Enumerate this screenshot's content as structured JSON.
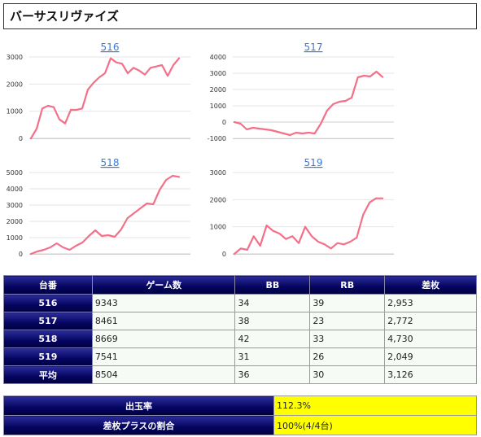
{
  "page": {
    "title": "バーサスリヴァイズ"
  },
  "chart_data": [
    {
      "type": "line",
      "title": "516",
      "ylim": [
        0,
        3000
      ],
      "yticks": [
        0,
        1000,
        2000,
        3000
      ],
      "ytick_labels": [
        "0",
        "1000",
        "2000",
        "3000"
      ],
      "series": [
        {
          "values": [
            0,
            350,
            1100,
            1200,
            1150,
            700,
            550,
            1050,
            1050,
            1100,
            1800,
            2050,
            2250,
            2400,
            2950,
            2800,
            2750,
            2400,
            2600,
            2500,
            2350,
            2600,
            2650,
            2700,
            2300,
            2700,
            2953
          ]
        }
      ],
      "color": "#f3708a",
      "grid": true
    },
    {
      "type": "line",
      "title": "517",
      "ylim": [
        -1000,
        4000
      ],
      "yticks": [
        -1000,
        0,
        1000,
        2000,
        3000,
        4000
      ],
      "ytick_labels": [
        "-1000",
        "0",
        "1000",
        "2000",
        "3000",
        "4000"
      ],
      "series": [
        {
          "values": [
            0,
            -100,
            -450,
            -350,
            -400,
            -450,
            -500,
            -600,
            -700,
            -800,
            -650,
            -700,
            -650,
            -700,
            -100,
            700,
            1100,
            1250,
            1300,
            1500,
            2750,
            2850,
            2800,
            3100,
            2772
          ]
        }
      ],
      "color": "#f3708a",
      "grid": true
    },
    {
      "type": "line",
      "title": "518",
      "ylim": [
        0,
        5000
      ],
      "yticks": [
        0,
        1000,
        2000,
        3000,
        4000,
        5000
      ],
      "ytick_labels": [
        "0",
        "1000",
        "2000",
        "3000",
        "4000",
        "5000"
      ],
      "series": [
        {
          "values": [
            0,
            150,
            250,
            400,
            650,
            400,
            250,
            500,
            700,
            1100,
            1450,
            1100,
            1150,
            1050,
            1500,
            2200,
            2500,
            2800,
            3100,
            3050,
            3950,
            4550,
            4800,
            4730
          ]
        }
      ],
      "color": "#f3708a",
      "grid": true
    },
    {
      "type": "line",
      "title": "519",
      "ylim": [
        0,
        3000
      ],
      "yticks": [
        0,
        1000,
        2000,
        3000
      ],
      "ytick_labels": [
        "0",
        "1000",
        "2000",
        "3000"
      ],
      "series": [
        {
          "values": [
            0,
            200,
            150,
            650,
            300,
            1050,
            850,
            750,
            550,
            650,
            400,
            1000,
            650,
            450,
            350,
            200,
            400,
            350,
            450,
            600,
            1450,
            1900,
            2050,
            2049
          ]
        }
      ],
      "color": "#f3708a",
      "grid": true
    }
  ],
  "table": {
    "headers": [
      "台番",
      "ゲーム数",
      "BB",
      "RB",
      "差枚"
    ],
    "rows": [
      {
        "machine": "516",
        "games": "9343",
        "bb": "34",
        "rb": "39",
        "diff": "2,953"
      },
      {
        "machine": "517",
        "games": "8461",
        "bb": "38",
        "rb": "23",
        "diff": "2,772"
      },
      {
        "machine": "518",
        "games": "8669",
        "bb": "42",
        "rb": "33",
        "diff": "4,730"
      },
      {
        "machine": "519",
        "games": "7541",
        "bb": "31",
        "rb": "26",
        "diff": "2,049"
      },
      {
        "machine": "平均",
        "games": "8504",
        "bb": "36",
        "rb": "30",
        "diff": "3,126"
      }
    ]
  },
  "summary": {
    "payout_label": "出玉率",
    "payout_value": "112.3%",
    "plus_label": "差枚プラスの割合",
    "plus_value": "100%(4/4台)"
  }
}
